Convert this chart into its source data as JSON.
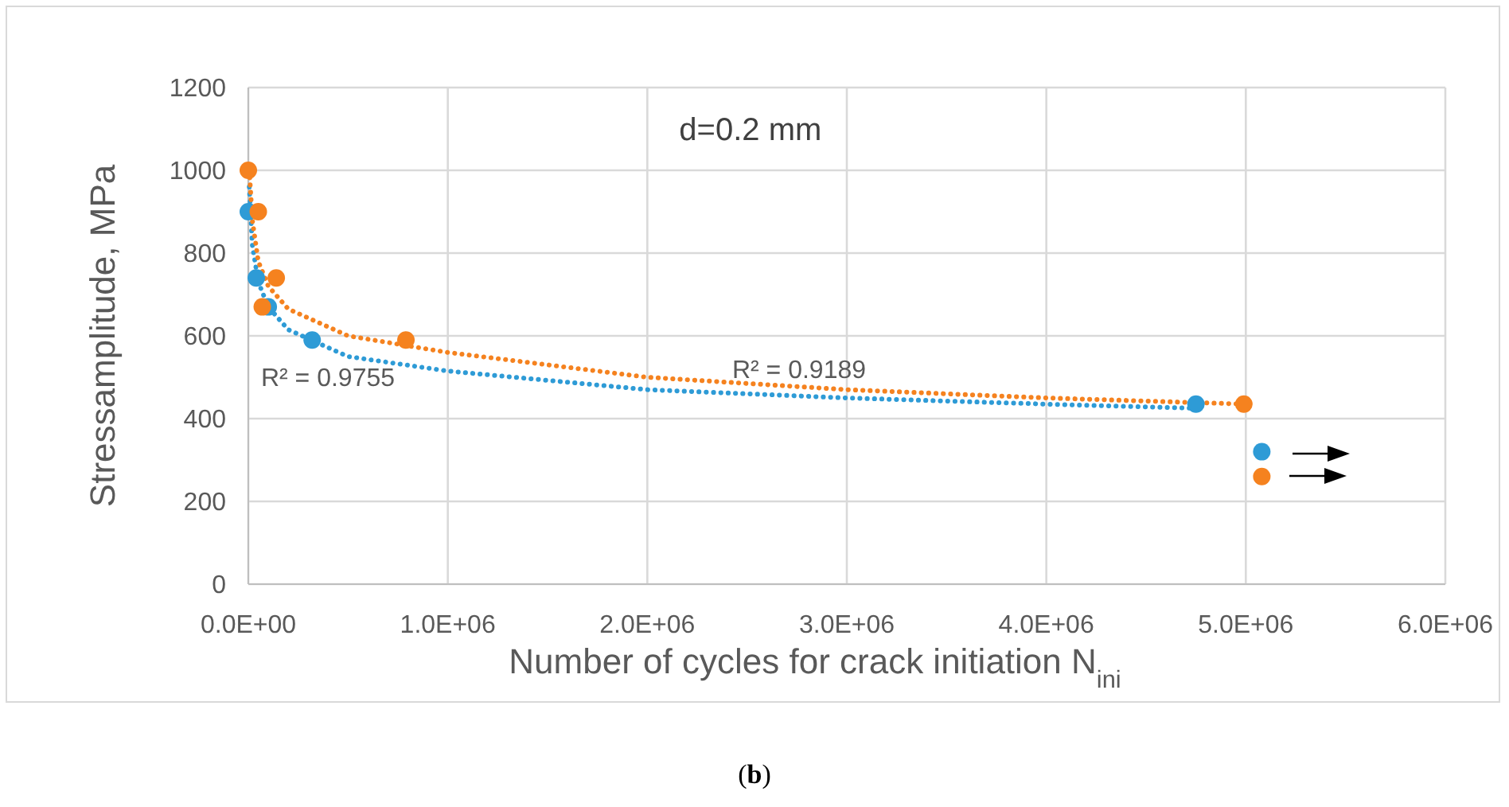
{
  "chart_data": {
    "type": "scatter",
    "xlabel": "Number of cycles for crack initiation N$_{ini}$",
    "ylabel": "Stressamplitude, MPa",
    "xlim": [
      0,
      6000000
    ],
    "ylim": [
      0,
      1200
    ],
    "xticks": [
      {
        "value": 0,
        "label": "0.0E+00"
      },
      {
        "value": 1000000,
        "label": "1.0E+06"
      },
      {
        "value": 2000000,
        "label": "2.0E+06"
      },
      {
        "value": 3000000,
        "label": "3.0E+06"
      },
      {
        "value": 4000000,
        "label": "4.0E+06"
      },
      {
        "value": 5000000,
        "label": "5.0E+06"
      },
      {
        "value": 6000000,
        "label": "6.0E+06"
      }
    ],
    "yticks": [
      0,
      200,
      400,
      600,
      800,
      1000,
      1200
    ],
    "grid": true,
    "series": [
      {
        "type": "line",
        "color": "#2e9bd6",
        "line_style": "dotted",
        "marker": "none",
        "x": [
          5000,
          20000,
          50000,
          100000,
          200000,
          500000,
          1000000,
          2000000,
          3000000,
          4000000,
          4750000
        ],
        "values": [
          960,
          820,
          730,
          670,
          615,
          550,
          515,
          470,
          450,
          435,
          425
        ]
      },
      {
        "type": "line",
        "color": "#f5821f",
        "line_style": "dotted",
        "marker": "none",
        "x": [
          5000,
          20000,
          50000,
          100000,
          200000,
          500000,
          1000000,
          2000000,
          3000000,
          4000000,
          5000000
        ],
        "values": [
          1000,
          880,
          780,
          720,
          665,
          600,
          560,
          500,
          470,
          450,
          435
        ]
      },
      {
        "type": "scatter",
        "color": "#2e9bd6",
        "marker": "circle",
        "x": [
          0,
          40000,
          100000,
          320000,
          4750000,
          5080000
        ],
        "values": [
          900,
          740,
          670,
          590,
          435,
          320
        ]
      },
      {
        "type": "scatter",
        "color": "#f5821f",
        "marker": "circle",
        "x": [
          0,
          50000,
          140000,
          70000,
          790000,
          4990000,
          5080000
        ],
        "values": [
          1000,
          900,
          740,
          670,
          590,
          435,
          260
        ]
      }
    ],
    "annotations": [
      "d=0.2 mm",
      "R² = 0.9755",
      "R² = 0.9189",
      "(b)"
    ]
  }
}
